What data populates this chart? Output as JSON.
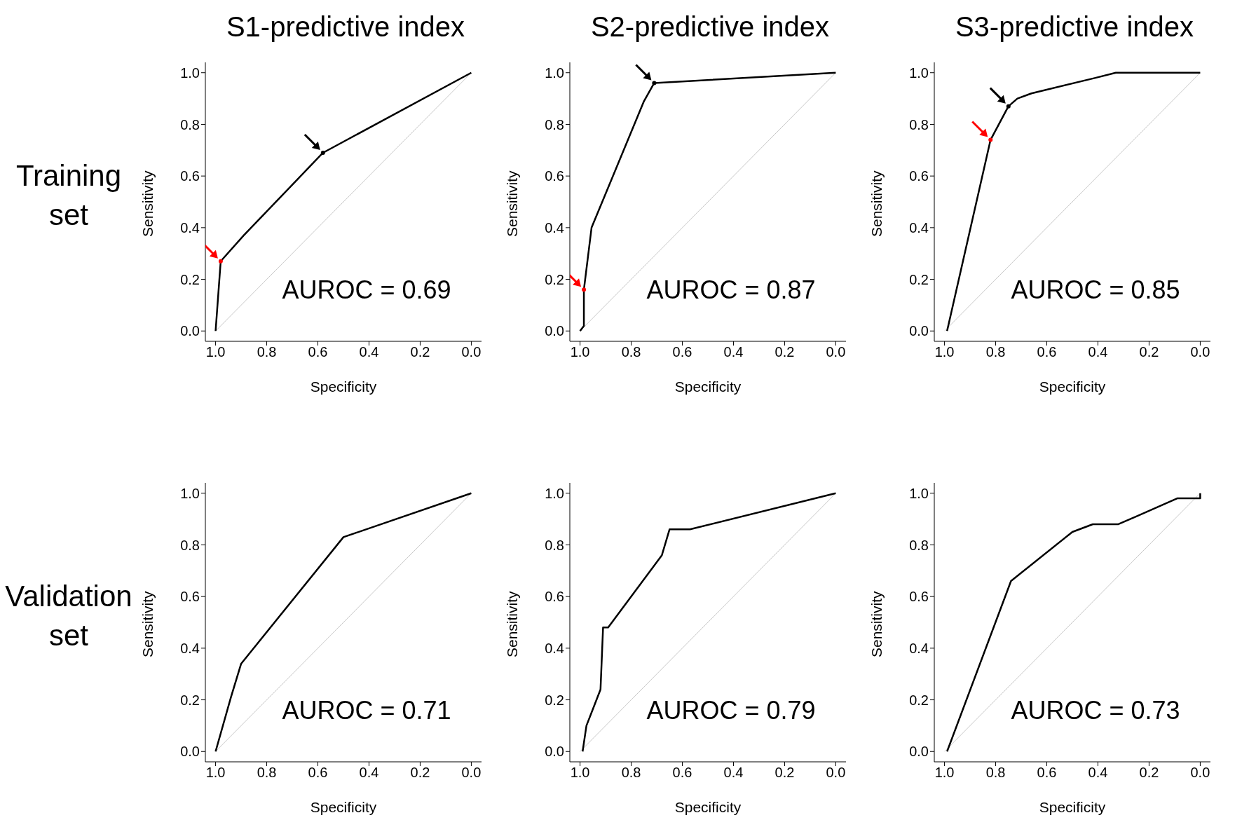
{
  "chart_data": [
    {
      "type": "line",
      "title": "S1-predictive index",
      "xlabel": "Specificity",
      "ylabel": "Sensitivity",
      "xlim": [
        1.04,
        -0.04
      ],
      "ylim": [
        -0.04,
        1.04
      ],
      "xticks": [
        {
          "value": 1,
          "label": "1.0"
        },
        {
          "value": 0.8,
          "label": "0.8"
        },
        {
          "value": 0.6,
          "label": "0.6"
        },
        {
          "value": 0.4,
          "label": "0.4"
        },
        {
          "value": 0.2,
          "label": "0.2"
        },
        {
          "value": 0,
          "label": "0.0"
        }
      ],
      "yticks": [
        {
          "value": 0,
          "label": "0.0"
        },
        {
          "value": 0.2,
          "label": "0.2"
        },
        {
          "value": 0.4,
          "label": "0.4"
        },
        {
          "value": 0.6,
          "label": "0.6"
        },
        {
          "value": 0.8,
          "label": "0.8"
        },
        {
          "value": 1,
          "label": "1.0"
        }
      ],
      "grid": false,
      "annotations": [
        "Training set",
        "AUROC = 0.69"
      ],
      "series": [
        {
          "color": "#c8c8c8",
          "x": [
            1,
            0
          ],
          "values": [
            0,
            1
          ]
        },
        {
          "color": "#000000",
          "x": [
            1,
            0.98,
            0.89,
            0.58,
            0
          ],
          "values": [
            0,
            0.27,
            0.37,
            0.69,
            1
          ]
        },
        {
          "type": "scatter",
          "color": "#ff0000",
          "x": [
            0.98
          ],
          "values": [
            0.27
          ]
        },
        {
          "type": "scatter",
          "color": "#000000",
          "x": [
            0.58
          ],
          "values": [
            0.69
          ]
        }
      ]
    },
    {
      "type": "line",
      "title": "S2-predictive index",
      "xlabel": "Specificity",
      "ylabel": "Sensitivity",
      "xlim": [
        1.04,
        -0.04
      ],
      "ylim": [
        -0.04,
        1.04
      ],
      "xticks": [
        {
          "value": 1,
          "label": "1.0"
        },
        {
          "value": 0.8,
          "label": "0.8"
        },
        {
          "value": 0.6,
          "label": "0.6"
        },
        {
          "value": 0.4,
          "label": "0.4"
        },
        {
          "value": 0.2,
          "label": "0.2"
        },
        {
          "value": 0,
          "label": "0.0"
        }
      ],
      "yticks": [
        {
          "value": 0,
          "label": "0.0"
        },
        {
          "value": 0.2,
          "label": "0.2"
        },
        {
          "value": 0.4,
          "label": "0.4"
        },
        {
          "value": 0.6,
          "label": "0.6"
        },
        {
          "value": 0.8,
          "label": "0.8"
        },
        {
          "value": 1,
          "label": "1.0"
        }
      ],
      "grid": false,
      "annotations": [
        "AUROC = 0.87"
      ],
      "series": [
        {
          "color": "#c8c8c8",
          "x": [
            1,
            0
          ],
          "values": [
            0,
            1
          ]
        },
        {
          "color": "#000000",
          "x": [
            1,
            0.985,
            0.985,
            0.955,
            0.75,
            0.71,
            0
          ],
          "values": [
            0,
            0.02,
            0.16,
            0.4,
            0.89,
            0.96,
            1
          ]
        },
        {
          "type": "scatter",
          "color": "#ff0000",
          "x": [
            0.985
          ],
          "values": [
            0.16
          ]
        },
        {
          "type": "scatter",
          "color": "#000000",
          "x": [
            0.71
          ],
          "values": [
            0.96
          ]
        }
      ]
    },
    {
      "type": "line",
      "title": "S3-predictive index",
      "xlabel": "Specificity",
      "ylabel": "Sensitivity",
      "xlim": [
        1.04,
        -0.04
      ],
      "ylim": [
        -0.04,
        1.04
      ],
      "xticks": [
        {
          "value": 1,
          "label": "1.0"
        },
        {
          "value": 0.8,
          "label": "0.8"
        },
        {
          "value": 0.6,
          "label": "0.6"
        },
        {
          "value": 0.4,
          "label": "0.4"
        },
        {
          "value": 0.2,
          "label": "0.2"
        },
        {
          "value": 0,
          "label": "0.0"
        }
      ],
      "yticks": [
        {
          "value": 0,
          "label": "0.0"
        },
        {
          "value": 0.2,
          "label": "0.2"
        },
        {
          "value": 0.4,
          "label": "0.4"
        },
        {
          "value": 0.6,
          "label": "0.6"
        },
        {
          "value": 0.8,
          "label": "0.8"
        },
        {
          "value": 1,
          "label": "1.0"
        }
      ],
      "grid": false,
      "annotations": [
        "AUROC = 0.85"
      ],
      "series": [
        {
          "color": "#c8c8c8",
          "x": [
            1,
            0
          ],
          "values": [
            0,
            1
          ]
        },
        {
          "color": "#000000",
          "x": [
            0.99,
            0.82,
            0.75,
            0.715,
            0.66,
            0.41,
            0.33,
            0
          ],
          "values": [
            0,
            0.74,
            0.87,
            0.9,
            0.92,
            0.98,
            1,
            1
          ]
        },
        {
          "type": "scatter",
          "color": "#ff0000",
          "x": [
            0.82
          ],
          "values": [
            0.74
          ]
        },
        {
          "type": "scatter",
          "color": "#000000",
          "x": [
            0.75
          ],
          "values": [
            0.87
          ]
        }
      ]
    },
    {
      "type": "line",
      "xlabel": "Specificity",
      "ylabel": "Sensitivity",
      "xlim": [
        1.04,
        -0.04
      ],
      "ylim": [
        -0.04,
        1.04
      ],
      "xticks": [
        {
          "value": 1,
          "label": "1.0"
        },
        {
          "value": 0.8,
          "label": "0.8"
        },
        {
          "value": 0.6,
          "label": "0.6"
        },
        {
          "value": 0.4,
          "label": "0.4"
        },
        {
          "value": 0.2,
          "label": "0.2"
        },
        {
          "value": 0,
          "label": "0.0"
        }
      ],
      "yticks": [
        {
          "value": 0,
          "label": "0.0"
        },
        {
          "value": 0.2,
          "label": "0.2"
        },
        {
          "value": 0.4,
          "label": "0.4"
        },
        {
          "value": 0.6,
          "label": "0.6"
        },
        {
          "value": 0.8,
          "label": "0.8"
        },
        {
          "value": 1,
          "label": "1.0"
        }
      ],
      "grid": false,
      "annotations": [
        "Validation set",
        "AUROC = 0.71"
      ],
      "series": [
        {
          "color": "#c8c8c8",
          "x": [
            1,
            0
          ],
          "values": [
            0,
            1
          ]
        },
        {
          "color": "#000000",
          "x": [
            1,
            0.94,
            0.9,
            0.5,
            0
          ],
          "values": [
            0,
            0.21,
            0.34,
            0.83,
            1
          ]
        }
      ]
    },
    {
      "type": "line",
      "xlabel": "Specificity",
      "ylabel": "Sensitivity",
      "xlim": [
        1.04,
        -0.04
      ],
      "ylim": [
        -0.04,
        1.04
      ],
      "xticks": [
        {
          "value": 1,
          "label": "1.0"
        },
        {
          "value": 0.8,
          "label": "0.8"
        },
        {
          "value": 0.6,
          "label": "0.6"
        },
        {
          "value": 0.4,
          "label": "0.4"
        },
        {
          "value": 0.2,
          "label": "0.2"
        },
        {
          "value": 0,
          "label": "0.0"
        }
      ],
      "yticks": [
        {
          "value": 0,
          "label": "0.0"
        },
        {
          "value": 0.2,
          "label": "0.2"
        },
        {
          "value": 0.4,
          "label": "0.4"
        },
        {
          "value": 0.6,
          "label": "0.6"
        },
        {
          "value": 0.8,
          "label": "0.8"
        },
        {
          "value": 1,
          "label": "1.0"
        }
      ],
      "grid": false,
      "annotations": [
        "AUROC = 0.79"
      ],
      "series": [
        {
          "color": "#c8c8c8",
          "x": [
            1,
            0
          ],
          "values": [
            0,
            1
          ]
        },
        {
          "color": "#000000",
          "x": [
            0.99,
            0.975,
            0.92,
            0.91,
            0.89,
            0.68,
            0.65,
            0.57,
            0
          ],
          "values": [
            0,
            0.1,
            0.24,
            0.48,
            0.48,
            0.76,
            0.86,
            0.86,
            1
          ]
        }
      ]
    },
    {
      "type": "line",
      "xlabel": "Specificity",
      "ylabel": "Sensitivity",
      "xlim": [
        1.04,
        -0.04
      ],
      "ylim": [
        -0.04,
        1.04
      ],
      "xticks": [
        {
          "value": 1,
          "label": "1.0"
        },
        {
          "value": 0.8,
          "label": "0.8"
        },
        {
          "value": 0.6,
          "label": "0.6"
        },
        {
          "value": 0.4,
          "label": "0.4"
        },
        {
          "value": 0.2,
          "label": "0.2"
        },
        {
          "value": 0,
          "label": "0.0"
        }
      ],
      "yticks": [
        {
          "value": 0,
          "label": "0.0"
        },
        {
          "value": 0.2,
          "label": "0.2"
        },
        {
          "value": 0.4,
          "label": "0.4"
        },
        {
          "value": 0.6,
          "label": "0.6"
        },
        {
          "value": 0.8,
          "label": "0.8"
        },
        {
          "value": 1,
          "label": "1.0"
        }
      ],
      "grid": false,
      "annotations": [
        "AUROC = 0.73"
      ],
      "series": [
        {
          "color": "#c8c8c8",
          "x": [
            1,
            0
          ],
          "values": [
            0,
            1
          ]
        },
        {
          "color": "#000000",
          "x": [
            0.99,
            0.74,
            0.5,
            0.42,
            0.32,
            0.25,
            0.09,
            0,
            0
          ],
          "values": [
            0,
            0.66,
            0.85,
            0.88,
            0.88,
            0.91,
            0.98,
            0.98,
            1
          ]
        }
      ]
    }
  ]
}
